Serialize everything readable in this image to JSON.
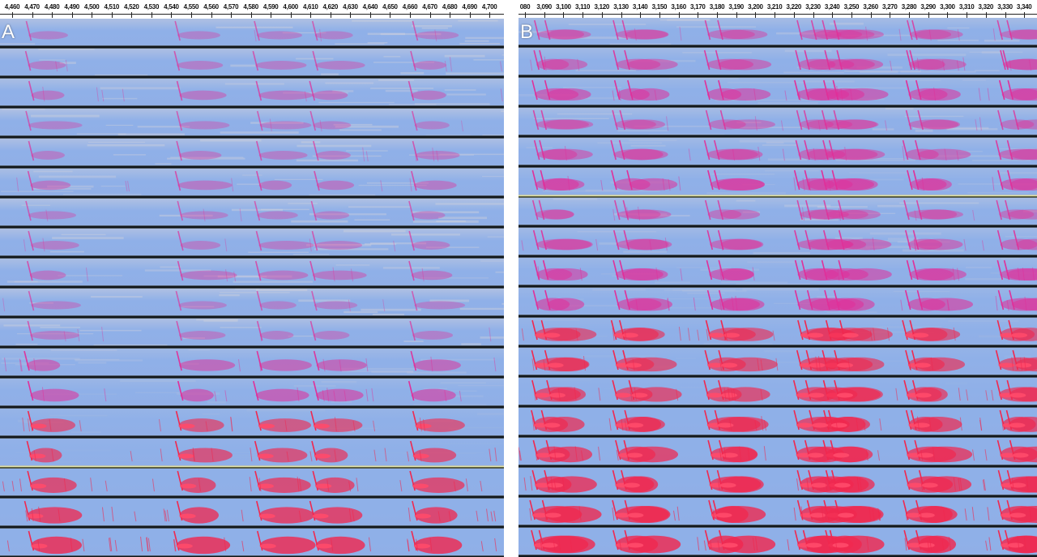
{
  "panels": [
    {
      "label": "A",
      "ticks": [
        "4,460",
        "4,470",
        "4,480",
        "4,490",
        "4,500",
        "4,510",
        "4,520",
        "4,530",
        "4,540",
        "4,550",
        "4,560",
        "4,570",
        "4,580",
        "4,590",
        "4,600",
        "4,610",
        "4,620",
        "4,630",
        "4,640",
        "4,650",
        "4,660",
        "4,670",
        "4,680",
        "4,690",
        "4,700"
      ]
    },
    {
      "label": "B",
      "ticks": [
        "080",
        "3,090",
        "3,100",
        "3,110",
        "3,120",
        "3,130",
        "3,140",
        "3,150",
        "3,160",
        "3,170",
        "3,180",
        "3,190",
        "3,200",
        "3,210",
        "3,220",
        "3,230",
        "3,240",
        "3,250",
        "3,260",
        "3,270",
        "3,280",
        "3,290",
        "3,300",
        "3,310",
        "3,320",
        "3,330",
        "3,340"
      ]
    }
  ],
  "colors": {
    "background_noise": "#8fb0e8",
    "pale_band": "#d2d2dc",
    "signal_magenta": "#e0309a",
    "signal_red": "#f0284f",
    "separator": "#0d1218"
  }
}
